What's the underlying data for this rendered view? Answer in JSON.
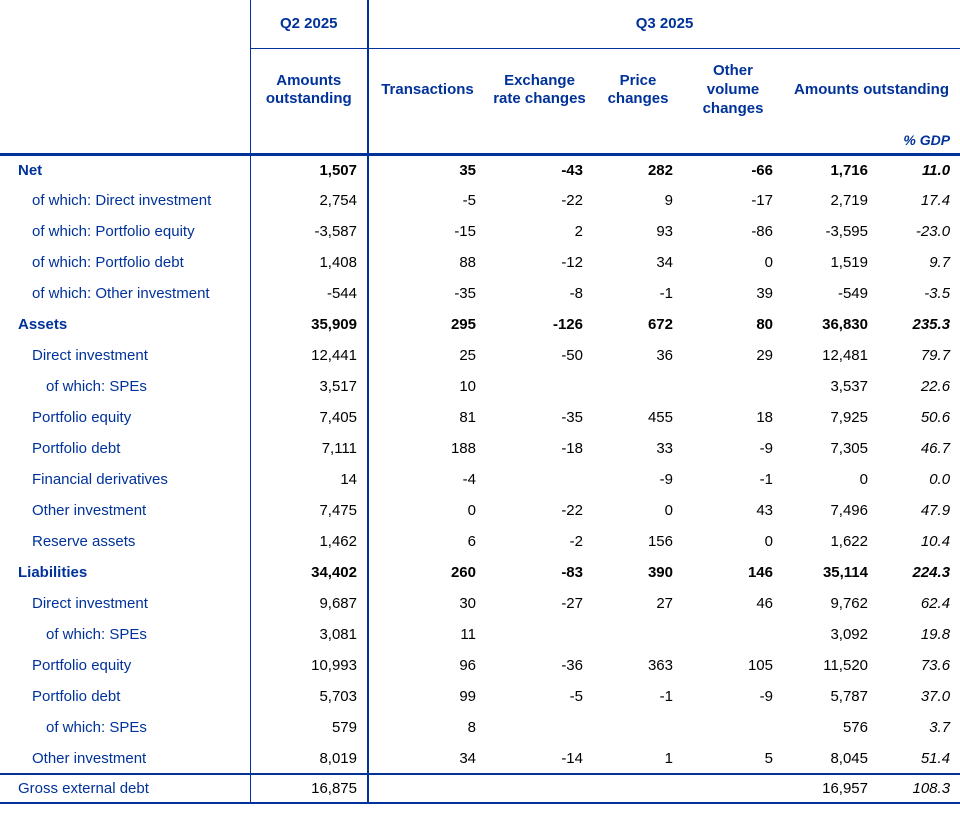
{
  "table": {
    "top_headers": {
      "q2": "Q2 2025",
      "q3": "Q3 2025"
    },
    "col_headers": [
      "Amounts outstanding",
      "Transactions",
      "Exchange rate changes",
      "Price changes",
      "Other volume changes",
      "Amounts outstanding"
    ],
    "gdp_header": "% GDP",
    "colors": {
      "accent_blue": "#003299",
      "number_text": "#000000"
    },
    "rows": [
      {
        "label": "Net",
        "indent": 0,
        "bold": true,
        "total": false,
        "values": [
          "1,507",
          "35",
          "-43",
          "282",
          "-66",
          "1,716",
          "11.0"
        ]
      },
      {
        "label": "of which: Direct investment",
        "indent": 1,
        "bold": false,
        "total": false,
        "values": [
          "2,754",
          "-5",
          "-22",
          "9",
          "-17",
          "2,719",
          "17.4"
        ]
      },
      {
        "label": "of which: Portfolio equity",
        "indent": 1,
        "bold": false,
        "total": false,
        "values": [
          "-3,587",
          "-15",
          "2",
          "93",
          "-86",
          "-3,595",
          "-23.0"
        ]
      },
      {
        "label": "of which: Portfolio debt",
        "indent": 1,
        "bold": false,
        "total": false,
        "values": [
          "1,408",
          "88",
          "-12",
          "34",
          "0",
          "1,519",
          "9.7"
        ]
      },
      {
        "label": "of which: Other investment",
        "indent": 1,
        "bold": false,
        "total": false,
        "values": [
          "-544",
          "-35",
          "-8",
          "-1",
          "39",
          "-549",
          "-3.5"
        ]
      },
      {
        "label": "Assets",
        "indent": 0,
        "bold": true,
        "total": false,
        "values": [
          "35,909",
          "295",
          "-126",
          "672",
          "80",
          "36,830",
          "235.3"
        ]
      },
      {
        "label": "Direct investment",
        "indent": 1,
        "bold": false,
        "total": false,
        "values": [
          "12,441",
          "25",
          "-50",
          "36",
          "29",
          "12,481",
          "79.7"
        ]
      },
      {
        "label": "of which: SPEs",
        "indent": 2,
        "bold": false,
        "total": false,
        "values": [
          "3,517",
          "10",
          "",
          "",
          "",
          "3,537",
          "22.6"
        ]
      },
      {
        "label": "Portfolio equity",
        "indent": 1,
        "bold": false,
        "total": false,
        "values": [
          "7,405",
          "81",
          "-35",
          "455",
          "18",
          "7,925",
          "50.6"
        ]
      },
      {
        "label": "Portfolio debt",
        "indent": 1,
        "bold": false,
        "total": false,
        "values": [
          "7,111",
          "188",
          "-18",
          "33",
          "-9",
          "7,305",
          "46.7"
        ]
      },
      {
        "label": "Financial derivatives",
        "indent": 1,
        "bold": false,
        "total": false,
        "values": [
          "14",
          "-4",
          "",
          "-9",
          "-1",
          "0",
          "0.0"
        ]
      },
      {
        "label": "Other investment",
        "indent": 1,
        "bold": false,
        "total": false,
        "values": [
          "7,475",
          "0",
          "-22",
          "0",
          "43",
          "7,496",
          "47.9"
        ]
      },
      {
        "label": "Reserve assets",
        "indent": 1,
        "bold": false,
        "total": false,
        "values": [
          "1,462",
          "6",
          "-2",
          "156",
          "0",
          "1,622",
          "10.4"
        ]
      },
      {
        "label": "Liabilities",
        "indent": 0,
        "bold": true,
        "total": false,
        "values": [
          "34,402",
          "260",
          "-83",
          "390",
          "146",
          "35,114",
          "224.3"
        ]
      },
      {
        "label": "Direct investment",
        "indent": 1,
        "bold": false,
        "total": false,
        "values": [
          "9,687",
          "30",
          "-27",
          "27",
          "46",
          "9,762",
          "62.4"
        ]
      },
      {
        "label": "of which: SPEs",
        "indent": 2,
        "bold": false,
        "total": false,
        "values": [
          "3,081",
          "11",
          "",
          "",
          "",
          "3,092",
          "19.8"
        ]
      },
      {
        "label": "Portfolio equity",
        "indent": 1,
        "bold": false,
        "total": false,
        "values": [
          "10,993",
          "96",
          "-36",
          "363",
          "105",
          "11,520",
          "73.6"
        ]
      },
      {
        "label": "Portfolio debt",
        "indent": 1,
        "bold": false,
        "total": false,
        "values": [
          "5,703",
          "99",
          "-5",
          "-1",
          "-9",
          "5,787",
          "37.0"
        ]
      },
      {
        "label": "of which: SPEs",
        "indent": 2,
        "bold": false,
        "total": false,
        "values": [
          "579",
          "8",
          "",
          "",
          "",
          "576",
          "3.7"
        ]
      },
      {
        "label": "Other investment",
        "indent": 1,
        "bold": false,
        "total": false,
        "values": [
          "8,019",
          "34",
          "-14",
          "1",
          "5",
          "8,045",
          "51.4"
        ]
      },
      {
        "label": "Gross external debt",
        "indent": 0,
        "bold": false,
        "total": true,
        "values": [
          "16,875",
          "",
          "",
          "",
          "",
          "16,957",
          "108.3"
        ]
      }
    ]
  }
}
